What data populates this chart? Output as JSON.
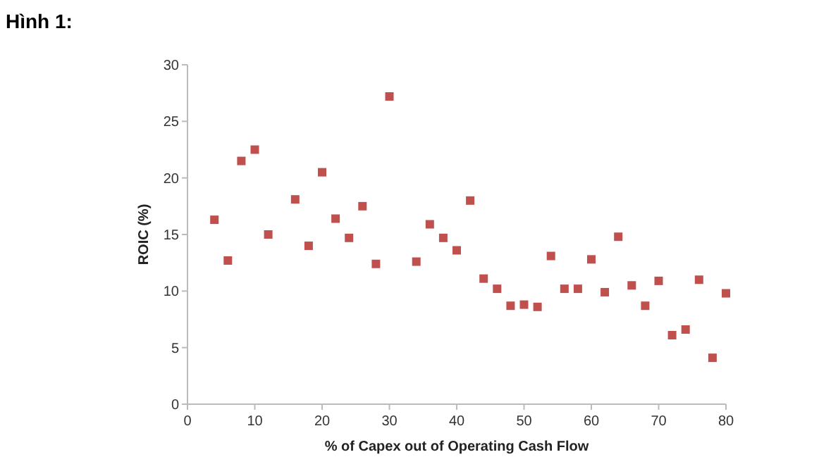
{
  "chart_data": {
    "type": "scatter",
    "title": "Hình 1:",
    "xlabel": "% of Capex out of Operating Cash Flow",
    "ylabel": "ROIC (%)",
    "x": [
      4,
      6,
      8,
      10,
      12,
      16,
      18,
      20,
      22,
      24,
      26,
      28,
      30,
      34,
      36,
      38,
      40,
      42,
      44,
      46,
      48,
      50,
      52,
      54,
      56,
      58,
      60,
      62,
      64,
      66,
      68,
      70,
      72,
      74,
      76,
      78,
      80
    ],
    "series": [
      {
        "color": "#c0504d",
        "values": [
          16.3,
          12.7,
          21.5,
          22.5,
          15,
          18.1,
          14,
          20.5,
          16.4,
          14.7,
          17.5,
          12.4,
          27.2,
          12.6,
          15.9,
          14.7,
          13.6,
          18,
          11.1,
          10.2,
          8.7,
          8.8,
          8.6,
          13.1,
          10.2,
          10.2,
          12.8,
          9.9,
          14.8,
          10.5,
          8.7,
          10.9,
          6.1,
          6.6,
          11,
          4.1,
          9.8
        ]
      }
    ],
    "xlim": [
      0,
      80
    ],
    "xticks": [
      0,
      10,
      20,
      30,
      40,
      50,
      60,
      70,
      80
    ],
    "ylim": [
      0,
      30
    ],
    "yticks": [
      0,
      5,
      10,
      15,
      20,
      25,
      30
    ],
    "marker": "square",
    "grid": false
  }
}
